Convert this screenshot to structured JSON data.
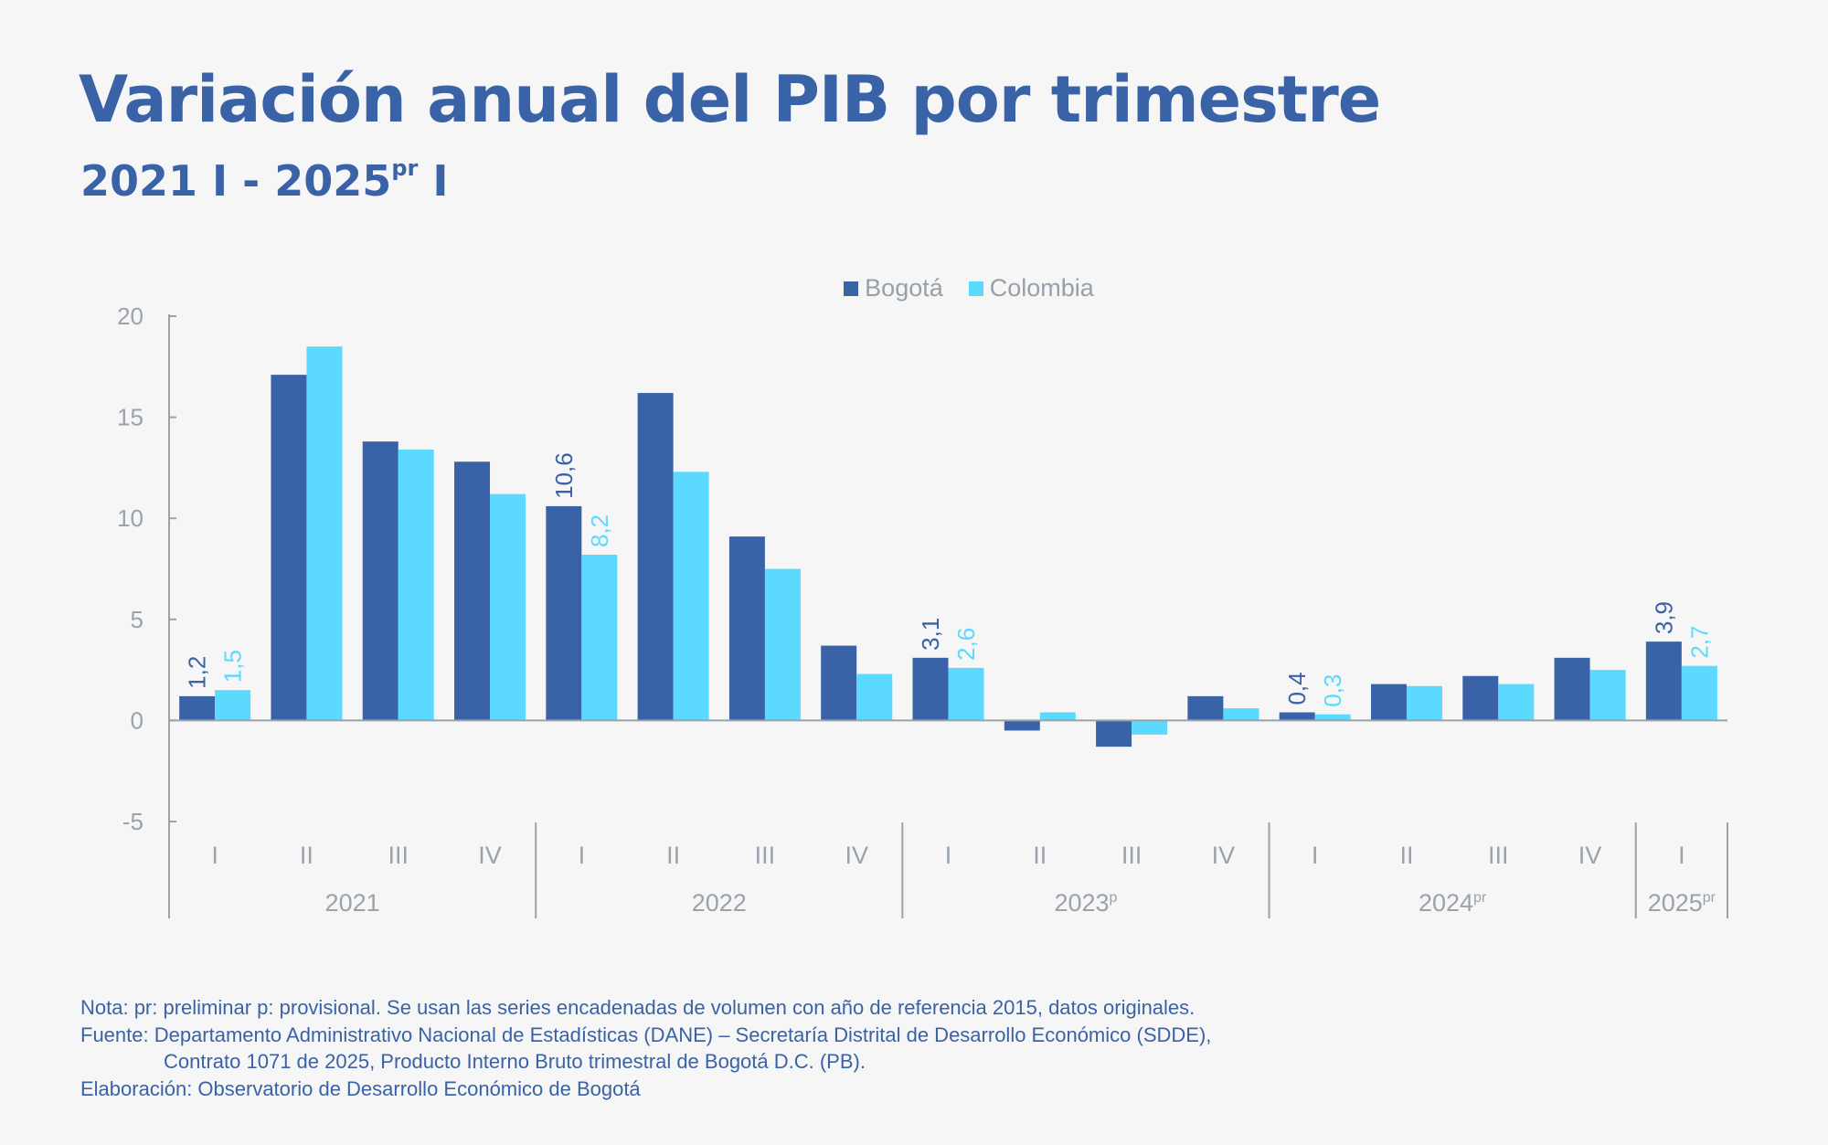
{
  "header": {
    "title": "Variación anual del PIB por trimestre",
    "subtitle_start": "2021 I - 2025",
    "subtitle_sup": "pr",
    "subtitle_end": " I"
  },
  "colors": {
    "background": "#f6f6f6",
    "bogota": "#3a62a7",
    "colombia": "#5cd9fe",
    "axis": "#9aa2ab",
    "title": "#3a62a7"
  },
  "chart_data": {
    "type": "bar",
    "title": "Variación anual del PIB por trimestre",
    "subtitle": "2021 I - 2025pr I",
    "xlabel": "",
    "ylabel": "",
    "ylim": [
      -5,
      20
    ],
    "yticks": [
      20,
      15,
      10,
      5,
      0,
      -5
    ],
    "grid": false,
    "legend_position": "top-center",
    "categories": [
      "2021 I",
      "2021 II",
      "2021 III",
      "2021 IV",
      "2022 I",
      "2022 II",
      "2022 III",
      "2022 IV",
      "2023p I",
      "2023p II",
      "2023p III",
      "2023p IV",
      "2024pr I",
      "2024pr II",
      "2024pr III",
      "2024pr IV",
      "2025pr I"
    ],
    "quarter_labels": [
      "I",
      "II",
      "III",
      "IV",
      "I",
      "II",
      "III",
      "IV",
      "I",
      "II",
      "III",
      "IV",
      "I",
      "II",
      "III",
      "IV",
      "I"
    ],
    "year_groups": [
      {
        "label": "2021",
        "sup": "",
        "count": 4
      },
      {
        "label": "2022",
        "sup": "",
        "count": 4
      },
      {
        "label": "2023",
        "sup": "p",
        "count": 4
      },
      {
        "label": "2024",
        "sup": "pr",
        "count": 4
      },
      {
        "label": "2025",
        "sup": "pr",
        "count": 1
      }
    ],
    "series": [
      {
        "name": "Bogotá",
        "color": "#3a62a7",
        "values": [
          1.2,
          17.1,
          13.8,
          12.8,
          10.6,
          16.2,
          9.1,
          3.7,
          3.1,
          -0.5,
          -1.3,
          1.2,
          0.4,
          1.8,
          2.2,
          3.1,
          3.9
        ]
      },
      {
        "name": "Colombia",
        "color": "#5cd9fe",
        "values": [
          1.5,
          18.5,
          13.4,
          11.2,
          8.2,
          12.3,
          7.5,
          2.3,
          2.6,
          0.4,
          -0.7,
          0.6,
          0.3,
          1.7,
          1.8,
          2.5,
          2.7
        ]
      }
    ],
    "data_labels": [
      {
        "index": 0,
        "series": 0,
        "text": "1,2"
      },
      {
        "index": 0,
        "series": 1,
        "text": "1,5"
      },
      {
        "index": 4,
        "series": 0,
        "text": "10,6"
      },
      {
        "index": 4,
        "series": 1,
        "text": "8,2"
      },
      {
        "index": 8,
        "series": 0,
        "text": "3,1"
      },
      {
        "index": 8,
        "series": 1,
        "text": "2,6"
      },
      {
        "index": 12,
        "series": 0,
        "text": "0,4"
      },
      {
        "index": 12,
        "series": 1,
        "text": "0,3"
      },
      {
        "index": 16,
        "series": 0,
        "text": "3,9"
      },
      {
        "index": 16,
        "series": 1,
        "text": "2,7"
      }
    ]
  },
  "legend": {
    "items": [
      {
        "label": "Bogotá",
        "color": "#3a62a7"
      },
      {
        "label": "Colombia",
        "color": "#5cd9fe"
      }
    ]
  },
  "footer": {
    "note": "Nota: pr: preliminar p: provisional.  Se usan las series encadenadas de volumen con año de referencia 2015, datos originales.",
    "source_line1": "Fuente: Departamento Administrativo Nacional de Estadísticas (DANE) – Secretaría Distrital de Desarrollo Económico (SDDE),",
    "source_line2": "Contrato 1071 de 2025, Producto Interno Bruto trimestral de Bogotá D.C. (PB).",
    "elaboration": "Elaboración: Observatorio de Desarrollo Económico de Bogotá"
  }
}
